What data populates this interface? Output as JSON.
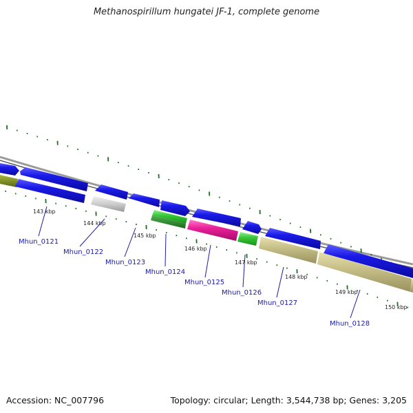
{
  "title": "Methanospirillum hungatei JF-1, complete genome",
  "footer": {
    "accession": "Accession: NC_007796",
    "summary": "Topology: circular; Length: 3,544,738 bp; Genes: 3,205"
  },
  "colors": {
    "forward_gene": "#1414e6",
    "olive_gene": "#c8c088",
    "dark_olive_gene": "#7a8a20",
    "gray_gene": "#c8c8c8",
    "green_gene": "#38c838",
    "dark_green_gene": "#2a8a2a",
    "magenta_gene": "#e8209a",
    "backbone": "#888888",
    "tick": "#1e6e1e",
    "label": "#1a1aa8"
  },
  "scale_labels": [
    "143 kbp",
    "144 kbp",
    "145 kbp",
    "146 kbp",
    "147 kbp",
    "148 kbp",
    "149 kbp",
    "150 kbp"
  ],
  "gene_labels": [
    "Mhun_0121",
    "Mhun_0122",
    "Mhun_0123",
    "Mhun_0124",
    "Mhun_0125",
    "Mhun_0126",
    "Mhun_0127",
    "Mhun_0128"
  ]
}
